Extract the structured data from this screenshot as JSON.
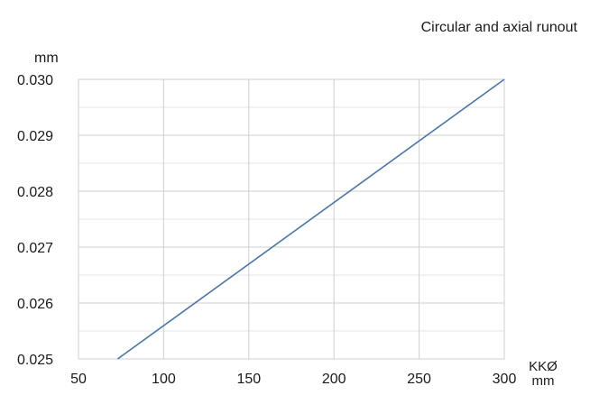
{
  "chart_data": {
    "type": "line",
    "title": "Circular and axial runout",
    "ylabel": "mm",
    "xlabel_lines": [
      "KKØ",
      "mm"
    ],
    "x_ticks": [
      50,
      100,
      150,
      200,
      250,
      300
    ],
    "y_ticks": [
      "0.025",
      "0.026",
      "0.027",
      "0.028",
      "0.029",
      "0.030"
    ],
    "xlim": [
      50,
      300
    ],
    "ylim": [
      0.025,
      0.03
    ],
    "minor_y_step": 0.0005,
    "grid": true,
    "series": [
      {
        "x": [
          73,
          300
        ],
        "y": [
          0.025,
          0.03
        ],
        "color": "#4a76ab"
      }
    ],
    "colors": {
      "grid_major": "#cfcfcf",
      "grid_minor": "#e6e6e6",
      "frame": "#cfcfcf",
      "text": "#1a1a1a"
    }
  }
}
